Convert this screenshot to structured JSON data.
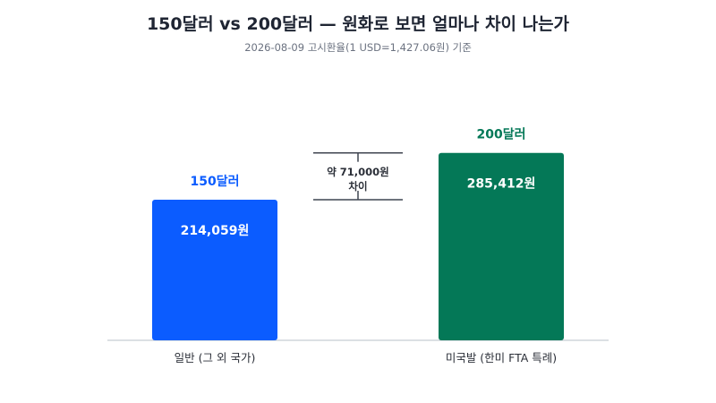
{
  "header": {
    "title": "150달러 vs 200달러 — 원화로 보면 얼마나 차이 나는가",
    "subtitle": "2026-08-09 고시환율(1 USD=1,427.06원) 기준"
  },
  "annotation": {
    "line1": "약 71,000원",
    "line2": "차이"
  },
  "chart_data": {
    "type": "bar",
    "title": "150달러 vs 200달러 — 원화로 보면 얼마나 차이 나는가",
    "subtitle": "2026-08-09 고시환율(1 USD=1,427.06원) 기준",
    "categories": [
      "일반 (그 외 국가)",
      "미국발 (한미 FTA 특례)"
    ],
    "bar_names": [
      "150달러",
      "200달러"
    ],
    "values": [
      214059,
      285412
    ],
    "value_labels": [
      "214,059원",
      "285,412원"
    ],
    "colors": [
      "#0b5cff",
      "#047857"
    ],
    "ylim": [
      0,
      300000
    ],
    "grid": false,
    "legend": "none",
    "xlabel": "",
    "ylabel": ""
  }
}
